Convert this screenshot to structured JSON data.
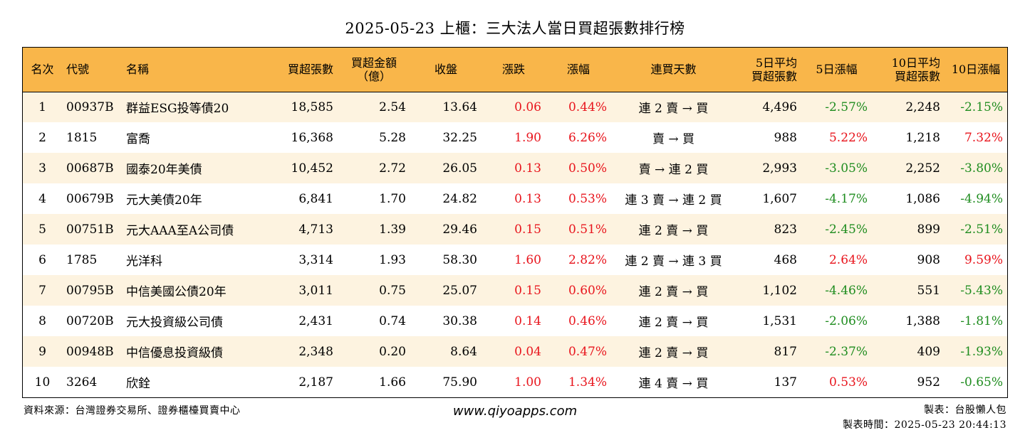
{
  "title": "2025-05-23 上櫃：三大法人當日買超張數排行榜",
  "headers": {
    "rank": "名次",
    "code": "代號",
    "name": "名稱",
    "buy_shares": "買超張數",
    "buy_amount_line1": "買超金額",
    "buy_amount_line2": "（億）",
    "close": "收盤",
    "change": "漲跌",
    "change_pct": "漲幅",
    "streak": "連買天數",
    "avg5_line1": "5日平均",
    "avg5_line2": "買超張數",
    "chg5": "5日漲幅",
    "avg10_line1": "10日平均",
    "avg10_line2": "買超張數",
    "chg10": "10日漲幅"
  },
  "rows": [
    {
      "rank": "1",
      "code": "00937B",
      "name": "群益ESG投等債20",
      "buy_shares": "18,585",
      "buy_amount": "2.54",
      "close": "13.64",
      "change": "0.06",
      "change_pct": "0.44%",
      "streak": "連 2 賣 → 買",
      "avg5": "4,496",
      "chg5": "-2.57%",
      "avg10": "2,248",
      "chg10": "-2.15%"
    },
    {
      "rank": "2",
      "code": "1815",
      "name": "富喬",
      "buy_shares": "16,368",
      "buy_amount": "5.28",
      "close": "32.25",
      "change": "1.90",
      "change_pct": "6.26%",
      "streak": "賣 → 買",
      "avg5": "988",
      "chg5": "5.22%",
      "avg10": "1,218",
      "chg10": "7.32%"
    },
    {
      "rank": "3",
      "code": "00687B",
      "name": "國泰20年美債",
      "buy_shares": "10,452",
      "buy_amount": "2.72",
      "close": "26.05",
      "change": "0.13",
      "change_pct": "0.50%",
      "streak": "賣 → 連 2 買",
      "avg5": "2,993",
      "chg5": "-3.05%",
      "avg10": "2,252",
      "chg10": "-3.80%"
    },
    {
      "rank": "4",
      "code": "00679B",
      "name": "元大美債20年",
      "buy_shares": "6,841",
      "buy_amount": "1.70",
      "close": "24.82",
      "change": "0.13",
      "change_pct": "0.53%",
      "streak": "連 3 賣 → 連 2 買",
      "avg5": "1,607",
      "chg5": "-4.17%",
      "avg10": "1,086",
      "chg10": "-4.94%"
    },
    {
      "rank": "5",
      "code": "00751B",
      "name": "元大AAA至A公司債",
      "buy_shares": "4,713",
      "buy_amount": "1.39",
      "close": "29.46",
      "change": "0.15",
      "change_pct": "0.51%",
      "streak": "連 2 賣 → 買",
      "avg5": "823",
      "chg5": "-2.45%",
      "avg10": "899",
      "chg10": "-2.51%"
    },
    {
      "rank": "6",
      "code": "1785",
      "name": "光洋科",
      "buy_shares": "3,314",
      "buy_amount": "1.93",
      "close": "58.30",
      "change": "1.60",
      "change_pct": "2.82%",
      "streak": "連 2 賣 → 連 3 買",
      "avg5": "468",
      "chg5": "2.64%",
      "avg10": "908",
      "chg10": "9.59%"
    },
    {
      "rank": "7",
      "code": "00795B",
      "name": "中信美國公債20年",
      "buy_shares": "3,011",
      "buy_amount": "0.75",
      "close": "25.07",
      "change": "0.15",
      "change_pct": "0.60%",
      "streak": "連 2 賣 → 買",
      "avg5": "1,102",
      "chg5": "-4.46%",
      "avg10": "551",
      "chg10": "-5.43%"
    },
    {
      "rank": "8",
      "code": "00720B",
      "name": "元大投資級公司債",
      "buy_shares": "2,431",
      "buy_amount": "0.74",
      "close": "30.38",
      "change": "0.14",
      "change_pct": "0.46%",
      "streak": "連 2 賣 → 買",
      "avg5": "1,531",
      "chg5": "-2.06%",
      "avg10": "1,388",
      "chg10": "-1.81%"
    },
    {
      "rank": "9",
      "code": "00948B",
      "name": "中信優息投資級債",
      "buy_shares": "2,348",
      "buy_amount": "0.20",
      "close": "8.64",
      "change": "0.04",
      "change_pct": "0.47%",
      "streak": "連 2 賣 → 買",
      "avg5": "817",
      "chg5": "-2.37%",
      "avg10": "409",
      "chg10": "-1.93%"
    },
    {
      "rank": "10",
      "code": "3264",
      "name": "欣銓",
      "buy_shares": "2,187",
      "buy_amount": "1.66",
      "close": "75.90",
      "change": "1.00",
      "change_pct": "1.34%",
      "streak": "連 4 賣 → 買",
      "avg5": "137",
      "chg5": "0.53%",
      "avg10": "952",
      "chg10": "-0.65%"
    }
  ],
  "colors": {
    "header_bg": "#f9b64a",
    "odd_row_bg": "#fdf3e0",
    "up": "#e8141c",
    "down": "#1e8c1e"
  },
  "footer": {
    "source": "資料來源：台灣證券交易所、證券櫃檯買賣中心",
    "website": "www.qiyoapps.com",
    "author": "製表：台股懶人包",
    "made_time": "製表時間：2025-05-23 20:44:13"
  }
}
